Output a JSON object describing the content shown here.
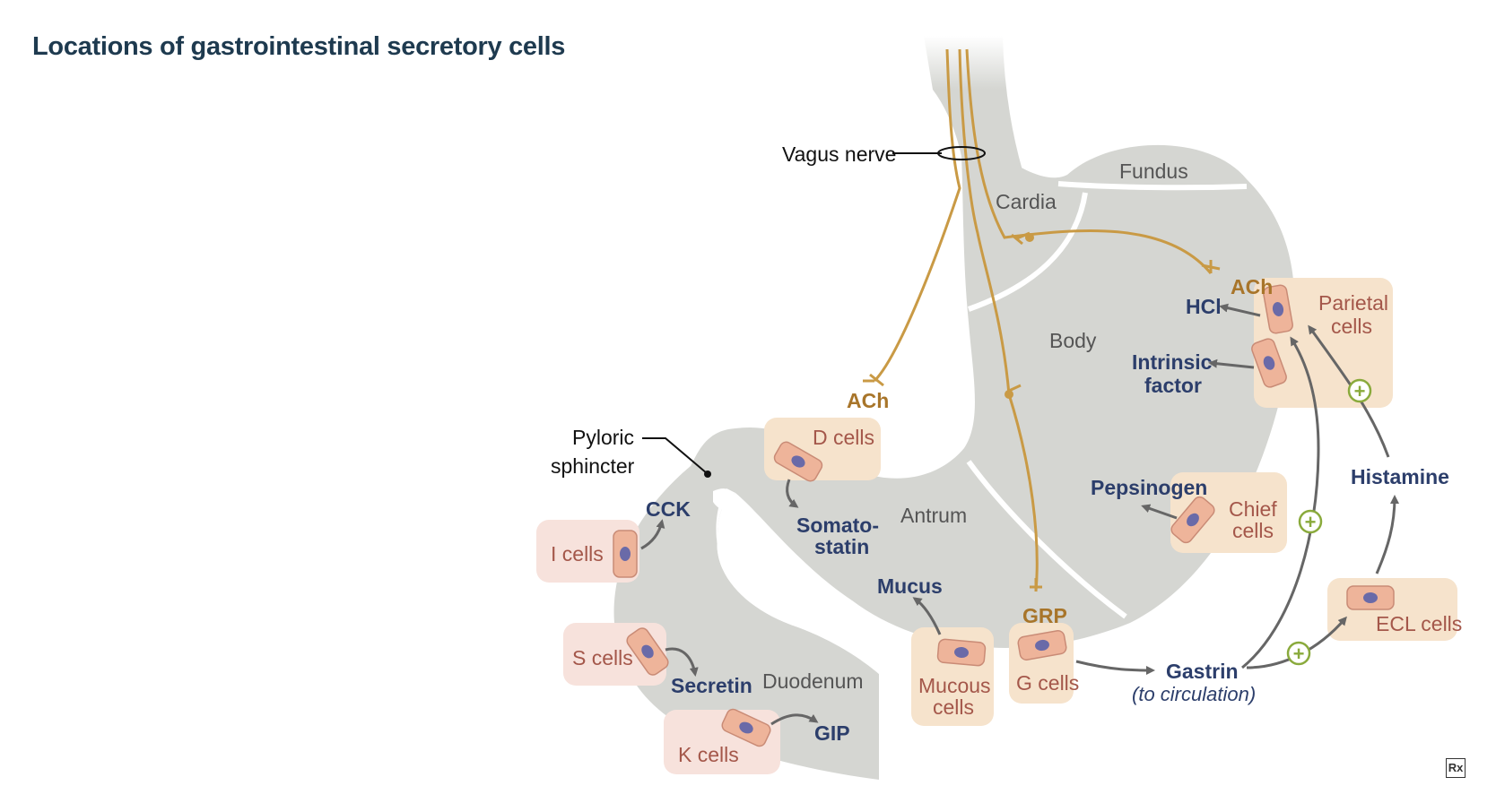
{
  "title": "Locations of gastrointestinal secretory cells",
  "regions": {
    "fundus": "Fundus",
    "cardia": "Cardia",
    "body": "Body",
    "antrum": "Antrum",
    "duodenum": "Duodenum"
  },
  "nerve": {
    "vagus": "Vagus nerve",
    "pyloric_line1": "Pyloric",
    "pyloric_line2": "sphincter"
  },
  "neurotransmitters": {
    "ach_antrum": "ACh",
    "ach_parietal": "ACh",
    "grp": "GRP"
  },
  "cells": {
    "parietal_line1": "Parietal",
    "parietal_line2": "cells",
    "d_cells": "D cells",
    "chief_line1": "Chief",
    "chief_line2": "cells",
    "i_cells": "I cells",
    "s_cells": "S cells",
    "k_cells": "K cells",
    "mucous_line1": "Mucous",
    "mucous_line2": "cells",
    "g_cells": "G cells",
    "ecl_cells": "ECL cells"
  },
  "products": {
    "hcl": "HCl",
    "intrinsic_line1": "Intrinsic",
    "intrinsic_line2": "factor",
    "pepsinogen": "Pepsinogen",
    "histamine": "Histamine",
    "somato_line1": "Somato-",
    "somato_line2": "statin",
    "cck": "CCK",
    "secretin": "Secretin",
    "gip": "GIP",
    "mucus": "Mucus",
    "gastrin": "Gastrin",
    "gastrin_note": "(to circulation)"
  },
  "symbols": {
    "plus": "+"
  },
  "logo": "Rx",
  "colors": {
    "stomach": "#d5d6d2",
    "nerve": "#c99a45",
    "cell_box": "#f6e3cc",
    "cell_box_pink": "#f7e2dc",
    "cell": "#eeb49a",
    "nucleus": "#6a6aa8",
    "stimulate": "#8aaa3c",
    "arrow": "#666666"
  }
}
